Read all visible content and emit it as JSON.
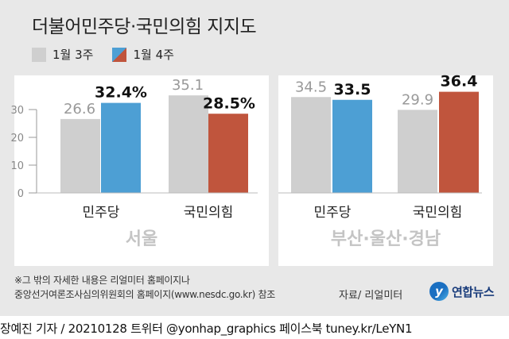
{
  "title": "더불어민주당·국민의힘 지지도",
  "legend": [
    {
      "label": "1월 3주",
      "color": "#cfcfcf"
    },
    {
      "label": "1월 4주",
      "color_a": "#4d9fd4",
      "color_b": "#c0553d"
    }
  ],
  "chart_data": [
    {
      "type": "bar",
      "region": "서울",
      "categories": [
        "민주당",
        "국민의힘"
      ],
      "series": [
        {
          "name": "1월 3주",
          "values": [
            26.6,
            35.1
          ],
          "labels": [
            "26.6",
            "35.1"
          ]
        },
        {
          "name": "1월 4주",
          "values": [
            32.4,
            28.5
          ],
          "labels": [
            "32.4%",
            "28.5%"
          ]
        }
      ],
      "yticks": [
        0,
        10,
        20,
        30
      ],
      "ylim": [
        0,
        40
      ],
      "colors": {
        "prev": "#cfcfcf",
        "dem": "#4d9fd4",
        "ppp": "#c0553d"
      }
    },
    {
      "type": "bar",
      "region": "부산·울산·경남",
      "categories": [
        "민주당",
        "국민의힘"
      ],
      "series": [
        {
          "name": "1월 3주",
          "values": [
            34.5,
            29.9
          ],
          "labels": [
            "34.5",
            "29.9"
          ]
        },
        {
          "name": "1월 4주",
          "values": [
            33.5,
            36.4
          ],
          "labels": [
            "33.5",
            "36.4"
          ]
        }
      ],
      "ylim": [
        0,
        40
      ],
      "colors": {
        "prev": "#cfcfcf",
        "dem": "#4d9fd4",
        "ppp": "#c0553d"
      }
    }
  ],
  "footnote": {
    "line1": "※그 밖의 자세한 내용은 리얼미터 홈페이지나",
    "line2": "중앙선거여론조사심의위원회의 홈페이지(www.nesdc.go.kr) 참조"
  },
  "source": "자료/ 리얼미터",
  "logo": {
    "mark": "y",
    "text": "연합뉴스"
  },
  "byline": "장예진 기자 / 20210128  트위터 @yonhap_graphics  페이스북 tuney.kr/LeYN1"
}
